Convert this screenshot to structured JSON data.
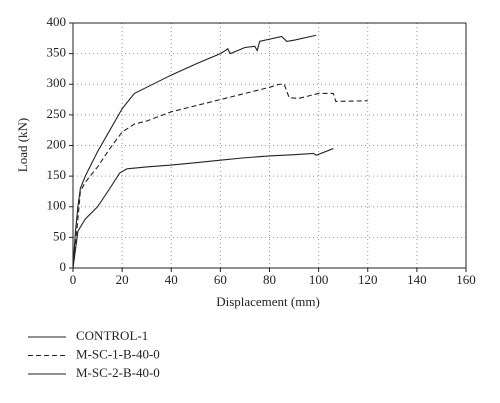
{
  "chart_data": {
    "type": "line",
    "xlabel": "Displacement (mm)",
    "ylabel": "Load (kN)",
    "xlim": [
      0,
      160
    ],
    "ylim": [
      0,
      400
    ],
    "xticks": [
      0,
      20,
      40,
      60,
      80,
      100,
      120,
      140,
      160
    ],
    "yticks": [
      0,
      50,
      100,
      150,
      200,
      250,
      300,
      350,
      400
    ],
    "grid": true,
    "series": [
      {
        "name": "CONTROL-1",
        "color": "#222222",
        "linestyle": "solid",
        "x": [
          0,
          2,
          5,
          10,
          15,
          19,
          22,
          30,
          40,
          50,
          60,
          70,
          80,
          90,
          98,
          99,
          106
        ],
        "values": [
          0,
          60,
          80,
          100,
          130,
          155,
          162,
          165,
          168,
          172,
          176,
          180,
          183,
          185,
          187,
          184,
          195
        ]
      },
      {
        "name": "M-SC-1-B-40-0",
        "color": "#222222",
        "linestyle": "dashed",
        "x": [
          0,
          2,
          3,
          5,
          10,
          15,
          20,
          25,
          30,
          40,
          50,
          60,
          70,
          80,
          84,
          86,
          88,
          92,
          95,
          100,
          104,
          106,
          107,
          120
        ],
        "values": [
          0,
          80,
          125,
          140,
          165,
          195,
          222,
          235,
          240,
          255,
          265,
          275,
          285,
          295,
          300,
          300,
          278,
          277,
          280,
          285,
          285,
          285,
          272,
          273
        ]
      },
      {
        "name": "M-SC-2-B-40-0",
        "color": "#222222",
        "linestyle": "solid",
        "x": [
          0,
          1,
          2,
          3,
          5,
          10,
          15,
          20,
          25,
          30,
          40,
          50,
          60,
          62,
          63,
          64,
          70,
          74,
          75,
          76,
          85,
          87,
          90,
          99
        ],
        "values": [
          0,
          60,
          100,
          130,
          150,
          190,
          225,
          260,
          285,
          295,
          315,
          333,
          350,
          355,
          358,
          350,
          360,
          362,
          355,
          370,
          378,
          370,
          372,
          380
        ]
      }
    ]
  }
}
